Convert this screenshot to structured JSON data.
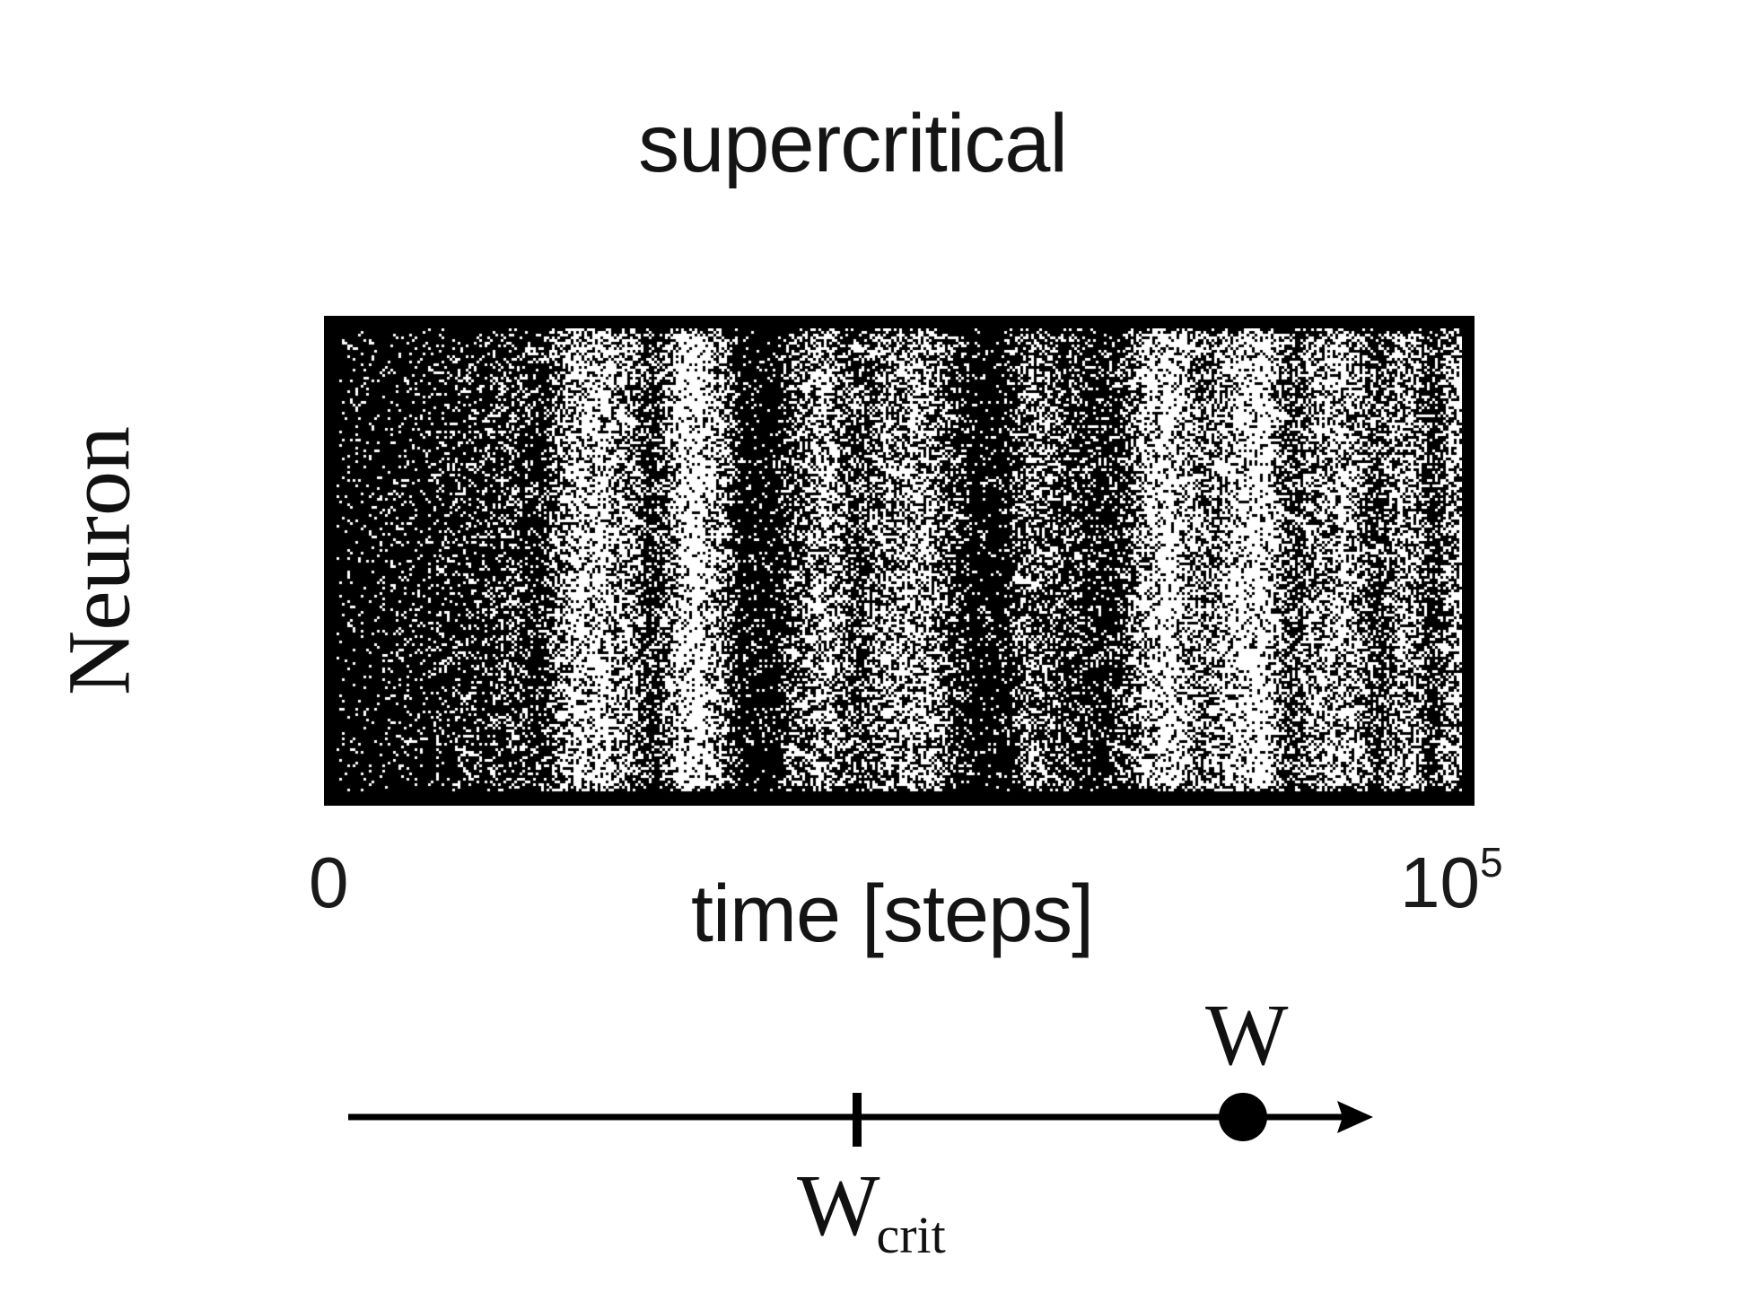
{
  "figure": {
    "title": "supercritical",
    "y_label": "Neuron",
    "x_label": "time [steps]",
    "x_tick_start": "0",
    "x_tick_end_base": "10",
    "x_tick_end_exp": "5"
  },
  "weight_axis": {
    "w_label": "W",
    "wcrit_main": "W",
    "wcrit_sub": "crit",
    "w_relative_position": 0.87,
    "wcrit_relative_position": 0.5
  },
  "raster": {
    "background_color": "#000000",
    "spike_color": "#ffffff",
    "burst_intensity_profile": [
      0.06,
      0.08,
      0.12,
      0.1,
      0.22,
      0.18,
      0.3,
      0.15,
      0.62,
      0.78,
      0.55,
      0.2,
      0.85,
      0.7,
      0.12,
      0.08,
      0.42,
      0.6,
      0.28,
      0.5,
      0.66,
      0.4,
      0.1,
      0.08,
      0.48,
      0.3,
      0.18,
      0.2,
      0.68,
      0.82,
      0.45,
      0.72,
      0.86,
      0.3,
      0.55,
      0.7,
      0.25,
      0.62,
      0.2,
      0.78
    ]
  }
}
